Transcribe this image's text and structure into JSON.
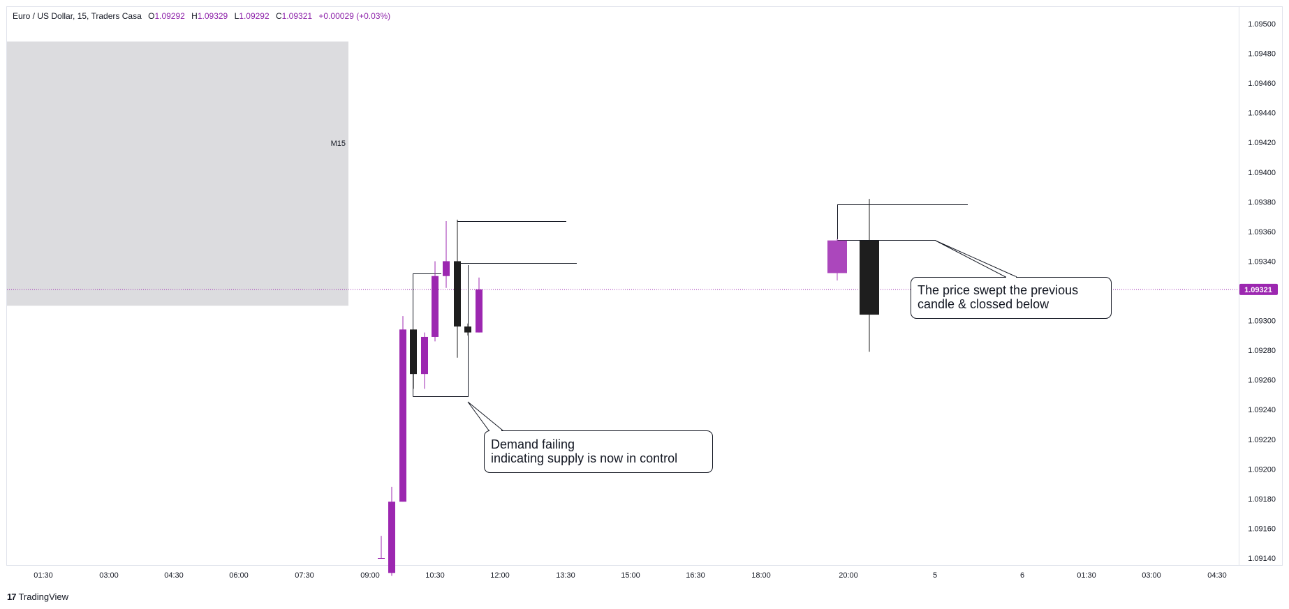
{
  "header": {
    "symbol": "Euro / US Dollar, 15, Traders Casa",
    "open_label": "O",
    "open": "1.09292",
    "high_label": "H",
    "high": "1.09329",
    "low_label": "L",
    "low": "1.09292",
    "close_label": "C",
    "close": "1.09321",
    "change": "+0.00029 (+0.03%)"
  },
  "branding": {
    "logo_text": "TradingView"
  },
  "colors": {
    "bull": "#9c27b0",
    "bull_light": "#ab47bc",
    "bear": "#1e1e1e",
    "line": "#131722",
    "zone": "#dcdcdf",
    "price_tag": "#9c27b0"
  },
  "chart_data": {
    "type": "candlestick",
    "ylim": [
      1.0913,
      1.0951
    ],
    "y_ticks": [
      "1.09500",
      "1.09480",
      "1.09460",
      "1.09440",
      "1.09420",
      "1.09400",
      "1.09380",
      "1.09360",
      "1.09340",
      "1.09320",
      "1.09300",
      "1.09280",
      "1.09260",
      "1.09240",
      "1.09220",
      "1.09200",
      "1.09180",
      "1.09160",
      "1.09140"
    ],
    "x_ticks": [
      "01:30",
      "03:00",
      "04:30",
      "06:00",
      "07:30",
      "09:00",
      "10:30",
      "12:00",
      "13:30",
      "15:00",
      "16:30",
      "18:00",
      "20:00",
      "5",
      "6",
      "01:30",
      "03:00",
      "04:30"
    ],
    "last_price": "1.09321",
    "zone": {
      "label": "M15",
      "top": 1.09488,
      "bottom": 1.0931
    },
    "candles": [
      {
        "time": "09:15",
        "open": 1.0914,
        "high": 1.09155,
        "low": 1.0914,
        "close": 1.0914
      },
      {
        "time": "09:30",
        "open": 1.0913,
        "high": 1.09188,
        "low": 1.09128,
        "close": 1.09178
      },
      {
        "time": "09:45",
        "open": 1.09178,
        "high": 1.09303,
        "low": 1.09178,
        "close": 1.09294
      },
      {
        "time": "10:00",
        "open": 1.09294,
        "high": 1.09294,
        "low": 1.09254,
        "close": 1.09264
      },
      {
        "time": "10:15",
        "open": 1.09264,
        "high": 1.09292,
        "low": 1.09254,
        "close": 1.09289
      },
      {
        "time": "10:30",
        "open": 1.09289,
        "high": 1.0934,
        "low": 1.09286,
        "close": 1.0933
      },
      {
        "time": "10:45",
        "open": 1.0933,
        "high": 1.09367,
        "low": 1.09322,
        "close": 1.0934
      },
      {
        "time": "11:00",
        "open": 1.0934,
        "high": 1.09368,
        "low": 1.09275,
        "close": 1.09296
      },
      {
        "time": "11:15",
        "open": 1.09296,
        "high": 1.09298,
        "low": 1.0929,
        "close": 1.09292
      },
      {
        "time": "11:30",
        "open": 1.09292,
        "high": 1.09329,
        "low": 1.09292,
        "close": 1.09321
      },
      {
        "time": "19:45",
        "open": 1.09332,
        "high": 1.09355,
        "low": 1.09327,
        "close": 1.09354
      },
      {
        "time": "20:00",
        "open": 1.09354,
        "high": 1.09382,
        "low": 1.09279,
        "close": 1.09304
      }
    ],
    "levels": [
      {
        "price": 1.09367,
        "from": "10:45",
        "to": "13:15"
      },
      {
        "price": 1.09339,
        "from": "10:45",
        "to": "13:30"
      },
      {
        "price": 1.09378,
        "from": "19:45",
        "to": "21:15"
      },
      {
        "price": 1.09355,
        "from": "19:45",
        "to": "21:00"
      }
    ],
    "annotations": [
      {
        "line1": "Demand failing",
        "line2": "indicating supply is now in control"
      },
      {
        "line1": "The price swept the previous",
        "line2": "candle & clossed below"
      }
    ]
  }
}
